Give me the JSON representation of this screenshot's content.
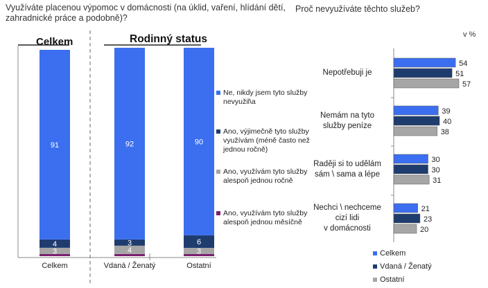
{
  "left_question": "Využíváte placenou výpomoc v domácnosti (na úklid, vaření, hlídání dětí, zahradnické práce a podobně)?",
  "right_question": "Proč nevyužíváte těchto služeb?",
  "header_total": "Celkem",
  "header_family": "Rodinný status",
  "unit": "v %",
  "colors": {
    "blue": "#3b6ff0",
    "navy": "#1f3c6e",
    "grey": "#a6a6a6",
    "purple": "#7a1f6e"
  },
  "chart_data": [
    {
      "type": "bar",
      "stacked": true,
      "orientation": "vertical",
      "categories": [
        "Celkem",
        "Vdaná / Ženatý",
        "Ostatní"
      ],
      "ylim": [
        0,
        100
      ],
      "series": [
        {
          "name": "Ano, využívám tyto služby alespoň jednou měsíčně",
          "color": "#7a1f6e",
          "values": [
            1,
            1,
            1
          ],
          "labels": [
            "",
            "",
            ""
          ]
        },
        {
          "name": "Ano, využívám tyto služby alespoň jednou ročně",
          "color": "#a6a6a6",
          "values": [
            3,
            4,
            3
          ],
          "labels": [
            "3",
            "4",
            "3"
          ]
        },
        {
          "name": "Ano, výjimečně tyto služby využívám (méně často než jednou ročně)",
          "color": "#1f3c6e",
          "values": [
            4,
            3,
            6
          ],
          "labels": [
            "4",
            "3",
            "6"
          ]
        },
        {
          "name": "Ne, nikdy jsem tyto služby nevyužil\\a",
          "color": "#3b6ff0",
          "values": [
            91,
            92,
            90
          ],
          "labels": [
            "91",
            "92",
            "90"
          ]
        }
      ]
    },
    {
      "type": "bar",
      "orientation": "horizontal",
      "categories": [
        "Nepotřebuji je",
        "Nemám na tyto služby peníze",
        "Raději si to udělám sám \\ sama a lépe",
        "Nechci \\ nechceme cizí lidi v domácnosti"
      ],
      "category_lines": [
        [
          "Nepotřebuji je"
        ],
        [
          "Nemám na tyto",
          "služby peníze"
        ],
        [
          "Raději si to udělám",
          "sám \\ sama a lépe"
        ],
        [
          "Nechci \\ nechceme",
          "cizí lidi",
          "v domácnosti"
        ]
      ],
      "series": [
        {
          "name": "Celkem",
          "color": "#3b6ff0",
          "values": [
            54,
            39,
            30,
            21
          ]
        },
        {
          "name": "Vdaná / Ženatý",
          "color": "#1f3c6e",
          "values": [
            51,
            40,
            30,
            23
          ]
        },
        {
          "name": "Ostatní",
          "color": "#a6a6a6",
          "values": [
            57,
            38,
            31,
            20
          ]
        }
      ]
    }
  ]
}
